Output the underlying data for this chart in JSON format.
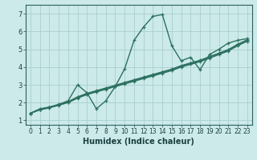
{
  "xlabel": "Humidex (Indice chaleur)",
  "bg_color": "#cceaea",
  "grid_color": "#aacece",
  "line_color": "#2d7060",
  "xlim": [
    -0.5,
    23.5
  ],
  "ylim": [
    0.75,
    7.5
  ],
  "xticks": [
    0,
    1,
    2,
    3,
    4,
    5,
    6,
    7,
    8,
    9,
    10,
    11,
    12,
    13,
    14,
    15,
    16,
    17,
    18,
    19,
    20,
    21,
    22,
    23
  ],
  "yticks": [
    1,
    2,
    3,
    4,
    5,
    6,
    7
  ],
  "series": [
    [
      0,
      1.4,
      1,
      1.65,
      2,
      1.75,
      3,
      1.9,
      4,
      2.1,
      5,
      3.0,
      6,
      2.55,
      7,
      1.65,
      8,
      2.1,
      9,
      2.9,
      10,
      3.9,
      11,
      5.5,
      12,
      6.25,
      13,
      6.85,
      14,
      6.95,
      15,
      5.2,
      16,
      4.35,
      17,
      4.55,
      18,
      3.85,
      19,
      4.7,
      20,
      5.0,
      21,
      5.35,
      22,
      5.5,
      23,
      5.6
    ],
    [
      0,
      1.4,
      1,
      1.6,
      2,
      1.7,
      3,
      1.85,
      4,
      2.0,
      5,
      2.25,
      6,
      2.45,
      7,
      2.6,
      8,
      2.75,
      9,
      2.9,
      10,
      3.05,
      11,
      3.2,
      12,
      3.35,
      13,
      3.5,
      14,
      3.65,
      15,
      3.8,
      16,
      4.0,
      17,
      4.15,
      18,
      4.3,
      19,
      4.5,
      20,
      4.7,
      21,
      4.9,
      22,
      5.2,
      23,
      5.45
    ],
    [
      0,
      1.4,
      1,
      1.6,
      2,
      1.72,
      3,
      1.87,
      4,
      2.03,
      5,
      2.28,
      6,
      2.48,
      7,
      2.63,
      8,
      2.78,
      9,
      2.93,
      10,
      3.1,
      11,
      3.25,
      12,
      3.4,
      13,
      3.55,
      14,
      3.7,
      15,
      3.85,
      16,
      4.05,
      17,
      4.2,
      18,
      4.35,
      19,
      4.55,
      20,
      4.75,
      21,
      4.95,
      22,
      5.25,
      23,
      5.5
    ],
    [
      0,
      1.4,
      1,
      1.6,
      2,
      1.73,
      3,
      1.88,
      4,
      2.05,
      5,
      2.32,
      6,
      2.52,
      7,
      2.67,
      8,
      2.82,
      9,
      2.97,
      10,
      3.13,
      11,
      3.28,
      12,
      3.43,
      13,
      3.58,
      14,
      3.73,
      15,
      3.88,
      16,
      4.08,
      17,
      4.23,
      18,
      4.38,
      19,
      4.58,
      20,
      4.78,
      21,
      4.98,
      22,
      5.28,
      23,
      5.53
    ]
  ]
}
